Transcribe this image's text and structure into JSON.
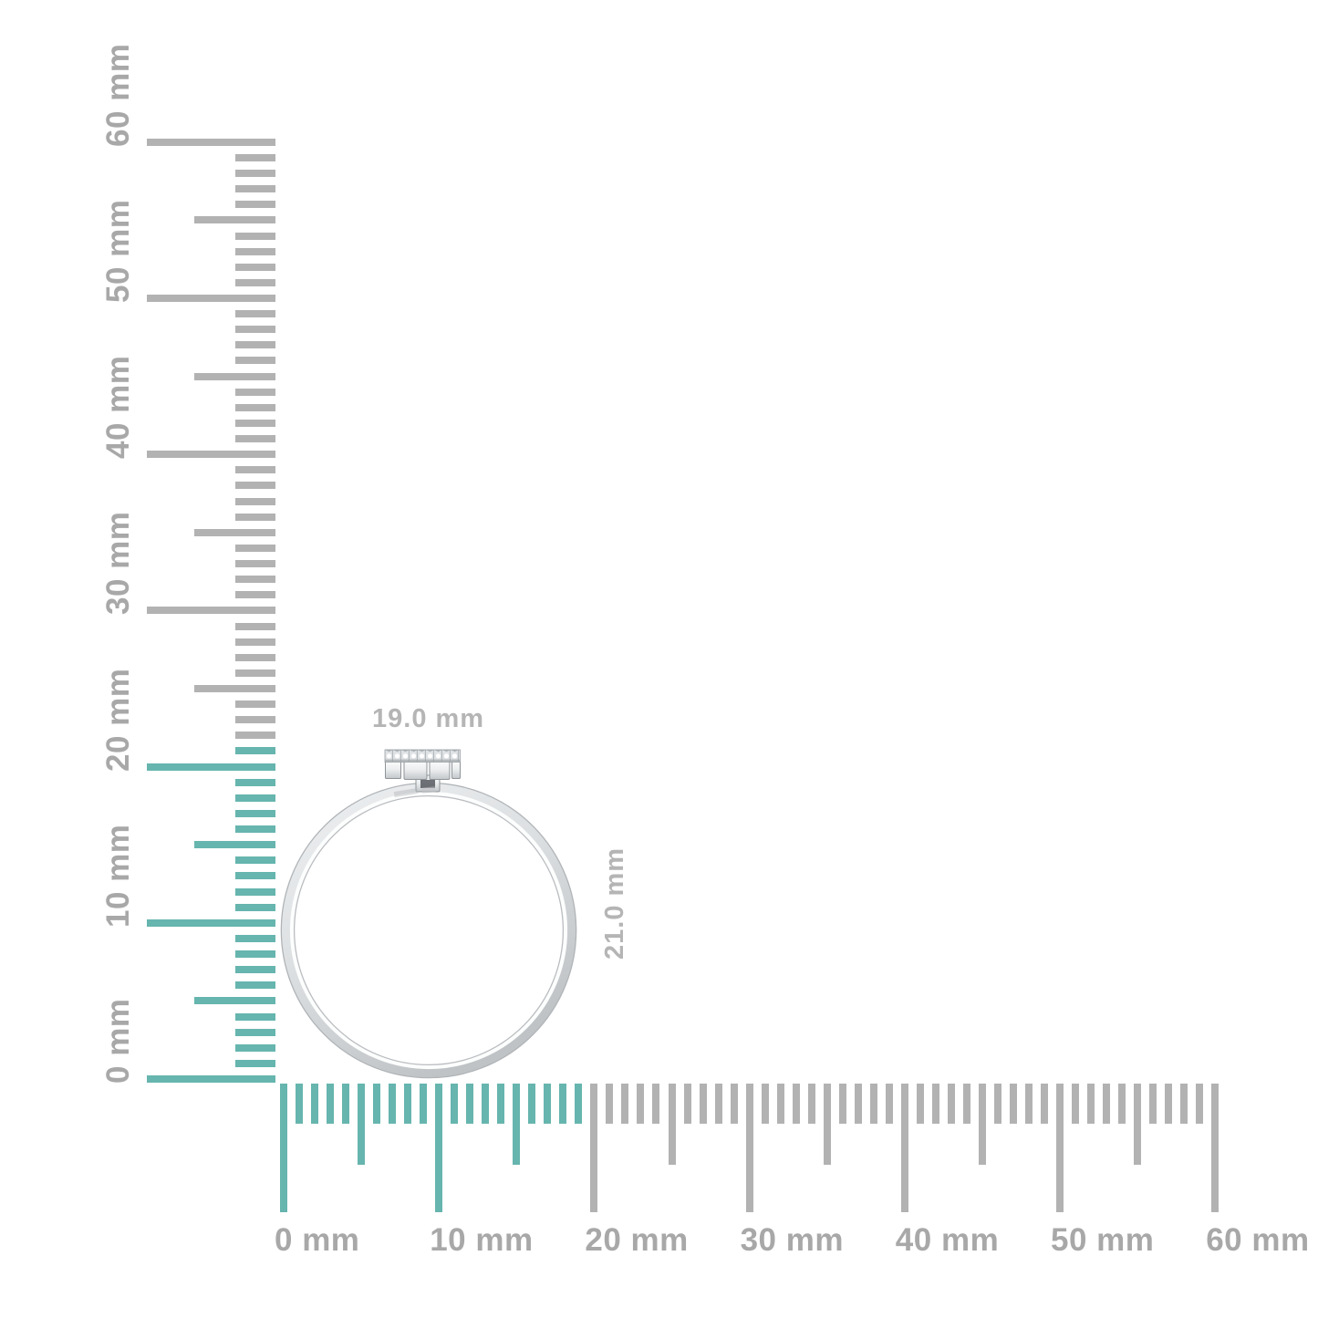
{
  "page": {
    "background": "#ffffff"
  },
  "colors": {
    "highlight_teal": "#66b5ae",
    "tick_gray": "#b2b2b2",
    "ruler_label_gray": "#a8a8a8",
    "dimension_label_gray": "#b5b5b5",
    "metal_light": "#f3f4f5",
    "metal_mid": "#dcdfe1",
    "metal_dark": "#c0c4c7",
    "metal_edge": "#a0a5a8"
  },
  "vertical_ruler": {
    "unit": "mm",
    "min_mm": 0,
    "max_mm": 60,
    "tick_step_mm": 1,
    "mid_tick_step_mm": 5,
    "label_step_mm": 10,
    "labels": [
      "0 mm",
      "10 mm",
      "20 mm",
      "30 mm",
      "40 mm",
      "50 mm",
      "60 mm"
    ],
    "highlight_to_mm": 21
  },
  "horizontal_ruler": {
    "unit": "mm",
    "min_mm": 0,
    "max_mm": 60,
    "tick_step_mm": 1,
    "mid_tick_step_mm": 5,
    "label_step_mm": 10,
    "labels": [
      "0 mm",
      "10 mm",
      "20 mm",
      "30 mm",
      "40 mm",
      "50 mm",
      "60 mm"
    ],
    "highlight_to_mm": 19
  },
  "dimensions": {
    "width": "19.0 mm",
    "height": "21.0 mm"
  },
  "illustration": {
    "name": "ring-side-view"
  }
}
